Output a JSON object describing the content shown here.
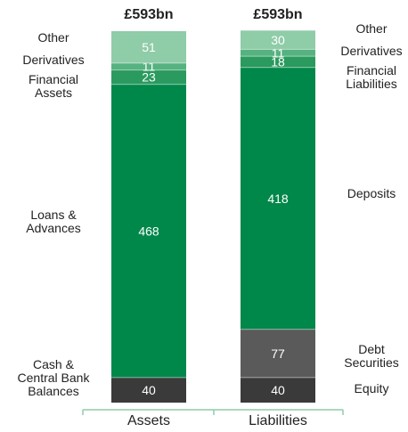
{
  "chart_data": {
    "type": "bar",
    "stacked": true,
    "categories": [
      "Assets",
      "Liabilities"
    ],
    "totals": [
      "£593bn",
      "£593bn"
    ],
    "segments": {
      "Assets": [
        {
          "label": "Cash & Central Bank Balances",
          "value": 40,
          "color": "#3a3a3a"
        },
        {
          "label": "Loans & Advances",
          "value": 468,
          "color": "#00874a"
        },
        {
          "label": "Financial Assets",
          "value": 23,
          "color": "#2a9a5e"
        },
        {
          "label": "Derivatives",
          "value": 11,
          "color": "#56b280"
        },
        {
          "label": "Other",
          "value": 51,
          "color": "#8fcca8"
        }
      ],
      "Liabilities": [
        {
          "label": "Equity",
          "value": 40,
          "color": "#3a3a3a"
        },
        {
          "label": "Debt Securities",
          "value": 77,
          "color": "#5a5a5a"
        },
        {
          "label": "Deposits",
          "value": 418,
          "color": "#00874a"
        },
        {
          "label": "Financial Liabilities",
          "value": 18,
          "color": "#2a9a5e"
        },
        {
          "label": "Derivatives",
          "value": 11,
          "color": "#56b280"
        },
        {
          "label": "Other",
          "value": 30,
          "color": "#8fcca8"
        }
      ]
    },
    "category_labels": {
      "Assets": [
        {
          "lines": [
            "Other"
          ],
          "segment": 4
        },
        {
          "lines": [
            "Derivatives"
          ],
          "segment": 3
        },
        {
          "lines": [
            "Financial",
            "Assets"
          ],
          "segment": 2
        },
        {
          "lines": [
            "Loans &",
            "Advances"
          ],
          "segment": 1
        },
        {
          "lines": [
            "Cash &",
            "Central Bank",
            "Balances"
          ],
          "segment": 0
        }
      ],
      "Liabilities": [
        {
          "lines": [
            "Other"
          ],
          "segment": 5
        },
        {
          "lines": [
            "Derivatives"
          ],
          "segment": 4
        },
        {
          "lines": [
            "Financial",
            "Liabilities"
          ],
          "segment": 3
        },
        {
          "lines": [
            "Deposits"
          ],
          "segment": 2
        },
        {
          "lines": [
            "Debt",
            "Securities"
          ],
          "segment": 1
        },
        {
          "lines": [
            "Equity"
          ],
          "segment": 0
        }
      ]
    },
    "ymax": 593,
    "axis_color": "#8fcca8"
  }
}
